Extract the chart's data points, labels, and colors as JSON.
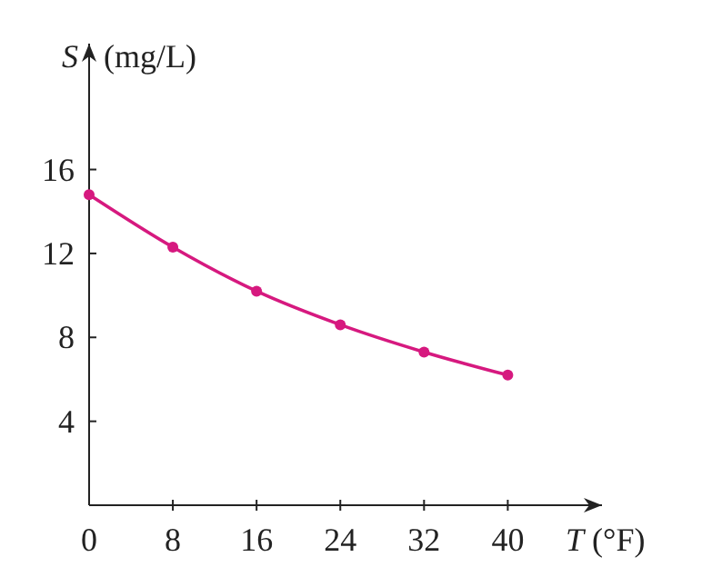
{
  "chart_data": {
    "type": "line",
    "xlabel": "T (°F)",
    "ylabel": "S (mg/L)",
    "x": [
      0,
      8,
      16,
      24,
      32,
      40
    ],
    "series": [
      {
        "color": "#d6197f",
        "values": [
          14.8,
          12.3,
          10.2,
          8.6,
          7.3,
          6.2
        ]
      }
    ],
    "xlim": [
      0,
      49
    ],
    "ylim": [
      0,
      22
    ],
    "xticks": [
      0,
      8,
      16,
      24,
      32,
      40
    ],
    "yticks": [
      4,
      8,
      12,
      16
    ],
    "marker": "circle",
    "line_style": "solid",
    "grid": false
  }
}
